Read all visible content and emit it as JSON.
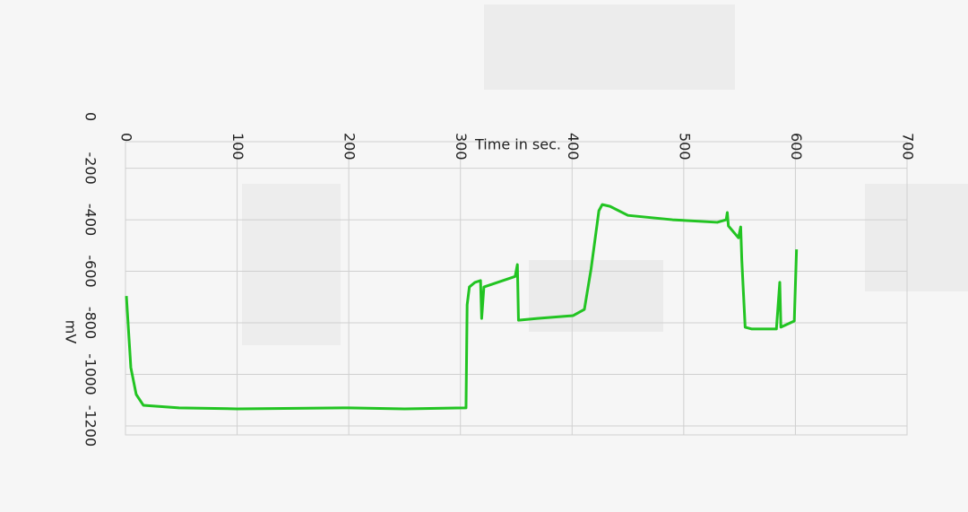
{
  "chart_data": {
    "type": "line",
    "x_label": "Time in sec.",
    "y_label": "mV",
    "xlim": [
      0,
      700
    ],
    "xticks": [
      0,
      100,
      200,
      300,
      400,
      500,
      600,
      700
    ],
    "ylim": [
      -97,
      -1235
    ],
    "yticks": [
      0,
      -200,
      -400,
      -600,
      -800,
      -1000,
      -1200
    ],
    "grid": true,
    "series": [
      {
        "name": "mV",
        "color": "#22c422",
        "x": [
          0.8,
          4.8,
          9.6,
          16,
          48,
          100,
          200,
          250,
          305,
          306,
          308,
          313,
          318,
          319,
          321,
          349,
          351,
          352,
          369,
          401,
          411,
          417,
          424,
          427,
          434,
          450,
          490,
          530,
          538,
          539,
          540,
          549,
          551,
          552,
          555,
          561,
          583,
          586,
          587,
          599,
          601
        ],
        "values": [
          -696,
          -974,
          -1078,
          -1120,
          -1130,
          -1134,
          -1130,
          -1134,
          -1130,
          -730,
          -661,
          -643,
          -636,
          -783,
          -661,
          -620,
          -574,
          -790,
          -783,
          -772,
          -748,
          -591,
          -365,
          -341,
          -348,
          -383,
          -400,
          -410,
          -400,
          -372,
          -424,
          -470,
          -428,
          -557,
          -817,
          -824,
          -824,
          -643,
          -817,
          -793,
          -515
        ]
      }
    ]
  }
}
